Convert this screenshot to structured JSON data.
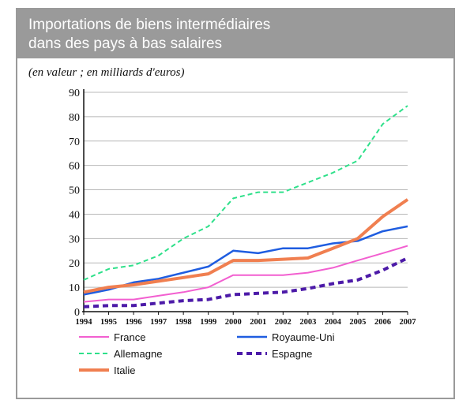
{
  "title_line1": "Importations de biens intermédiaires",
  "title_line2": "dans des pays à bas salaires",
  "subtitle": "(en valeur ; en milliards d'euros)",
  "colors": {
    "header_bg": "#9a9a9a",
    "frame": "#9a9a9a"
  },
  "chart_data": {
    "type": "line",
    "title": "Importations de biens intermédiaires dans des pays à bas salaires",
    "xlabel": "",
    "ylabel": "",
    "ylim": [
      0,
      90
    ],
    "yticks": [
      0,
      10,
      20,
      30,
      40,
      50,
      60,
      70,
      80,
      90
    ],
    "ytick_labels": [
      "0",
      "10",
      "20",
      "30",
      "40",
      "50",
      "60",
      "70",
      "80",
      "90"
    ],
    "grid": true,
    "legend_position": "bottom",
    "x": [
      "1994",
      "1995",
      "1996",
      "1997",
      "1998",
      "1999",
      "2000",
      "2001",
      "2002",
      "2003",
      "2004",
      "2005",
      "2006",
      "2007"
    ],
    "series": [
      {
        "name": "France",
        "color": "#f25fd0",
        "style": "solid",
        "width": 2,
        "values": [
          4,
          5,
          5,
          6.5,
          8,
          10,
          15,
          15,
          15,
          16,
          18,
          21,
          24,
          27
        ]
      },
      {
        "name": "Royaume-Uni",
        "color": "#1f5de0",
        "style": "solid",
        "width": 2.5,
        "values": [
          7,
          9,
          12,
          13.5,
          16,
          18.5,
          25,
          24,
          26,
          26,
          28,
          29,
          33,
          35
        ]
      },
      {
        "name": "Allemagne",
        "color": "#2ee08a",
        "style": "dashed",
        "width": 2,
        "values": [
          13,
          17.5,
          19,
          23,
          30,
          35,
          46.5,
          49,
          49,
          53,
          57,
          62,
          77,
          84.5
        ]
      },
      {
        "name": "Espagne",
        "color": "#4c1aa8",
        "style": "dashed-thick",
        "width": 4,
        "values": [
          2,
          2.5,
          2.5,
          3.5,
          4.5,
          5,
          7,
          7.5,
          8,
          9.5,
          11.5,
          13,
          17,
          22
        ]
      },
      {
        "name": "Italie",
        "color": "#f07f50",
        "style": "solid",
        "width": 4,
        "values": [
          8,
          10,
          11,
          12.5,
          14,
          15.5,
          21,
          21,
          21.5,
          22,
          26,
          30,
          39,
          46
        ]
      }
    ]
  }
}
